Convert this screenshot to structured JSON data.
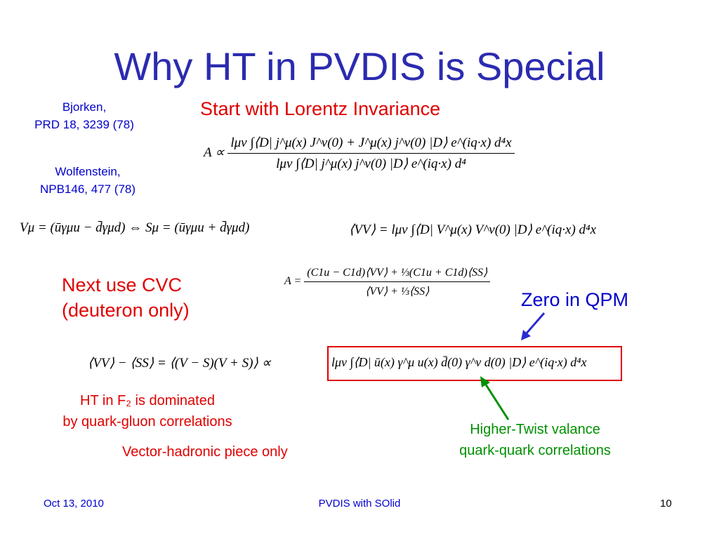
{
  "title": "Why HT in PVDIS is Special",
  "references": [
    {
      "lines": [
        "Bjorken,",
        "PRD 18, 3239 (78)"
      ]
    },
    {
      "lines": [
        "Wolfenstein,",
        "NPB146, 477 (78)"
      ]
    }
  ],
  "subheading": "Start with Lorentz Invariance",
  "equations": {
    "amplitude": {
      "lhs": "A ∝",
      "numerator": "lμν ∫⟨D| j^μ(x) J^ν(0) + J^μ(x) j^ν(0) |D⟩ e^(iq·x) d⁴x",
      "denominator": "lμν ∫⟨D| j^μ(x) j^ν(0) |D⟩ e^(iq·x) d⁴"
    },
    "currents": "Vμ = (ūγμu − d̄γμd) ⇔ Sμ = (ūγμu + d̄γμd)",
    "vv": "⟨VV⟩ = lμν ∫⟨D| V^μ(x) V^ν(0) |D⟩ e^(iq·x) d⁴x",
    "cvc": {
      "lhs": "A =",
      "numerator": "(C1u − C1d)⟨VV⟩ + ⅓(C1u + C1d)⟨SS⟩",
      "denominator": "⟨VV⟩ + ⅓⟨SS⟩"
    },
    "difference": "⟨VV⟩ − ⟨SS⟩ = ⟨(V − S)(V + S)⟩ ∝",
    "boxed": "lμν ∫⟨D| ū(x) γ^μ u(x) d̄(0) γ^ν d(0) |D⟩ e^(iq·x) d⁴x"
  },
  "cvc_note": [
    "Next use CVC",
    "(deuteron only)"
  ],
  "qpm_note": "Zero in QPM",
  "ht_note": [
    "HT in F₂ is dominated",
    "by quark-gluon correlations"
  ],
  "vector_note": "Vector-hadronic piece only",
  "twist_note": [
    "Higher-Twist valance",
    "quark-quark correlations"
  ],
  "footer": {
    "date": "Oct 13, 2010",
    "center": "PVDIS with SOlid",
    "page": "10"
  }
}
